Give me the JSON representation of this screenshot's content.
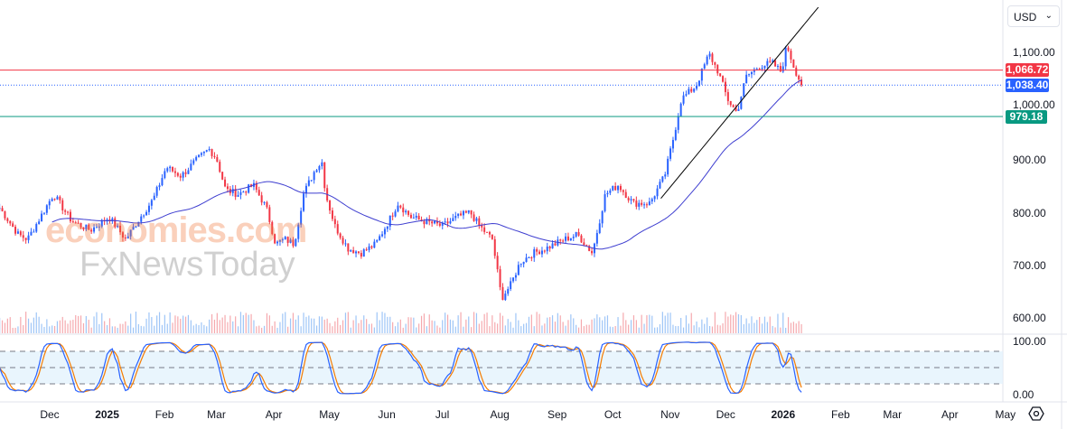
{
  "currency_selector": {
    "value": "USD"
  },
  "watermark": {
    "line1": "economies.com",
    "line2": "FxNewsToday"
  },
  "price_axis": {
    "ticks": [
      "1,100.00",
      "1,000.00",
      "900.00",
      "800.00",
      "700.00",
      "600.00"
    ],
    "tick_values": [
      1100,
      1000,
      900,
      800,
      700,
      600
    ]
  },
  "oscillator_axis": {
    "ticks": [
      "100.00",
      "0.00"
    ]
  },
  "price_tags": {
    "resistance": {
      "label": "1,066.72",
      "value": 1066.72,
      "color": "#f23645"
    },
    "last": {
      "label": "1,038.40",
      "value": 1038.4,
      "color": "#2962ff"
    },
    "support": {
      "label": "979.18",
      "value": 979.18,
      "color": "#089981"
    }
  },
  "time_axis": [
    {
      "label": "Dec",
      "date": "2024-12-01"
    },
    {
      "label": "2025",
      "date": "2025-01-01",
      "bold": true
    },
    {
      "label": "Feb",
      "date": "2025-02-01"
    },
    {
      "label": "Mar",
      "date": "2025-03-01"
    },
    {
      "label": "Apr",
      "date": "2025-04-01"
    },
    {
      "label": "May",
      "date": "2025-05-01"
    },
    {
      "label": "Jun",
      "date": "2025-06-01"
    },
    {
      "label": "Jul",
      "date": "2025-07-01"
    },
    {
      "label": "Aug",
      "date": "2025-08-01"
    },
    {
      "label": "Sep",
      "date": "2025-09-01"
    },
    {
      "label": "Oct",
      "date": "2025-10-01"
    },
    {
      "label": "Nov",
      "date": "2025-11-01"
    },
    {
      "label": "Dec",
      "date": "2025-12-01"
    },
    {
      "label": "2026",
      "date": "2026-01-01",
      "bold": true
    },
    {
      "label": "Feb",
      "date": "2026-02-01"
    },
    {
      "label": "Mar",
      "date": "2026-03-01"
    },
    {
      "label": "Apr",
      "date": "2026-04-01"
    },
    {
      "label": "May",
      "date": "2026-05-01"
    }
  ],
  "colors": {
    "up": "#2962ff",
    "down": "#f23645",
    "ma": "#3f3fd0",
    "stoch_k": "#2962ff",
    "stoch_d": "#f57c00",
    "band": "#e3f2fd"
  },
  "chart_data": {
    "type": "candlestick",
    "ylim": [
      600,
      1100
    ],
    "oscillator": {
      "type": "stochastic",
      "levels": [
        80,
        50,
        20
      ],
      "ylim": [
        0,
        100
      ]
    },
    "moving_average": true,
    "approx_closes": [
      [
        "2024-11-04",
        807
      ],
      [
        "2024-11-14",
        757
      ],
      [
        "2024-11-19",
        748
      ],
      [
        "2024-11-26",
        790
      ],
      [
        "2024-12-03",
        833
      ],
      [
        "2024-12-13",
        782
      ],
      [
        "2024-12-23",
        765
      ],
      [
        "2025-01-02",
        790
      ],
      [
        "2025-01-11",
        748
      ],
      [
        "2025-01-19",
        790
      ],
      [
        "2025-01-26",
        824
      ],
      [
        "2025-02-02",
        884
      ],
      [
        "2025-02-10",
        867
      ],
      [
        "2025-02-17",
        893
      ],
      [
        "2025-02-25",
        918
      ],
      [
        "2025-03-01",
        901
      ],
      [
        "2025-03-06",
        841
      ],
      [
        "2025-03-13",
        833
      ],
      [
        "2025-03-21",
        850
      ],
      [
        "2025-03-28",
        807
      ],
      [
        "2025-04-02",
        739
      ],
      [
        "2025-04-07",
        748
      ],
      [
        "2025-04-12",
        739
      ],
      [
        "2025-04-17",
        833
      ],
      [
        "2025-04-24",
        884
      ],
      [
        "2025-04-27",
        893
      ],
      [
        "2025-04-29",
        833
      ],
      [
        "2025-05-04",
        773
      ],
      [
        "2025-05-11",
        731
      ],
      [
        "2025-05-18",
        722
      ],
      [
        "2025-05-26",
        739
      ],
      [
        "2025-06-02",
        782
      ],
      [
        "2025-06-07",
        816
      ],
      [
        "2025-06-14",
        790
      ],
      [
        "2025-06-21",
        782
      ],
      [
        "2025-07-01",
        773
      ],
      [
        "2025-07-09",
        790
      ],
      [
        "2025-07-16",
        799
      ],
      [
        "2025-07-21",
        773
      ],
      [
        "2025-07-28",
        748
      ],
      [
        "2025-08-02",
        637
      ],
      [
        "2025-08-07",
        663
      ],
      [
        "2025-08-12",
        705
      ],
      [
        "2025-08-19",
        722
      ],
      [
        "2025-08-26",
        731
      ],
      [
        "2025-09-05",
        748
      ],
      [
        "2025-09-12",
        757
      ],
      [
        "2025-09-20",
        722
      ],
      [
        "2025-09-27",
        833
      ],
      [
        "2025-10-04",
        850
      ],
      [
        "2025-10-12",
        816
      ],
      [
        "2025-10-21",
        816
      ],
      [
        "2025-10-29",
        867
      ],
      [
        "2025-11-03",
        943
      ],
      [
        "2025-11-07",
        1012
      ],
      [
        "2025-11-15",
        1037
      ],
      [
        "2025-11-22",
        1097
      ],
      [
        "2025-11-27",
        1063
      ],
      [
        "2025-12-02",
        1012
      ],
      [
        "2025-12-07",
        986
      ],
      [
        "2025-12-12",
        1054
      ],
      [
        "2025-12-19",
        1074
      ],
      [
        "2025-12-26",
        1080
      ],
      [
        "2025-12-31",
        1063
      ],
      [
        "2026-01-03",
        1114
      ],
      [
        "2026-01-07",
        1071
      ],
      [
        "2026-01-11",
        1038.4
      ]
    ],
    "horizontal_lines": [
      1066.72,
      1038.4,
      979.18
    ],
    "trendline": [
      [
        "2025-10-27",
        825
      ],
      [
        "2026-01-20",
        1185
      ]
    ]
  }
}
